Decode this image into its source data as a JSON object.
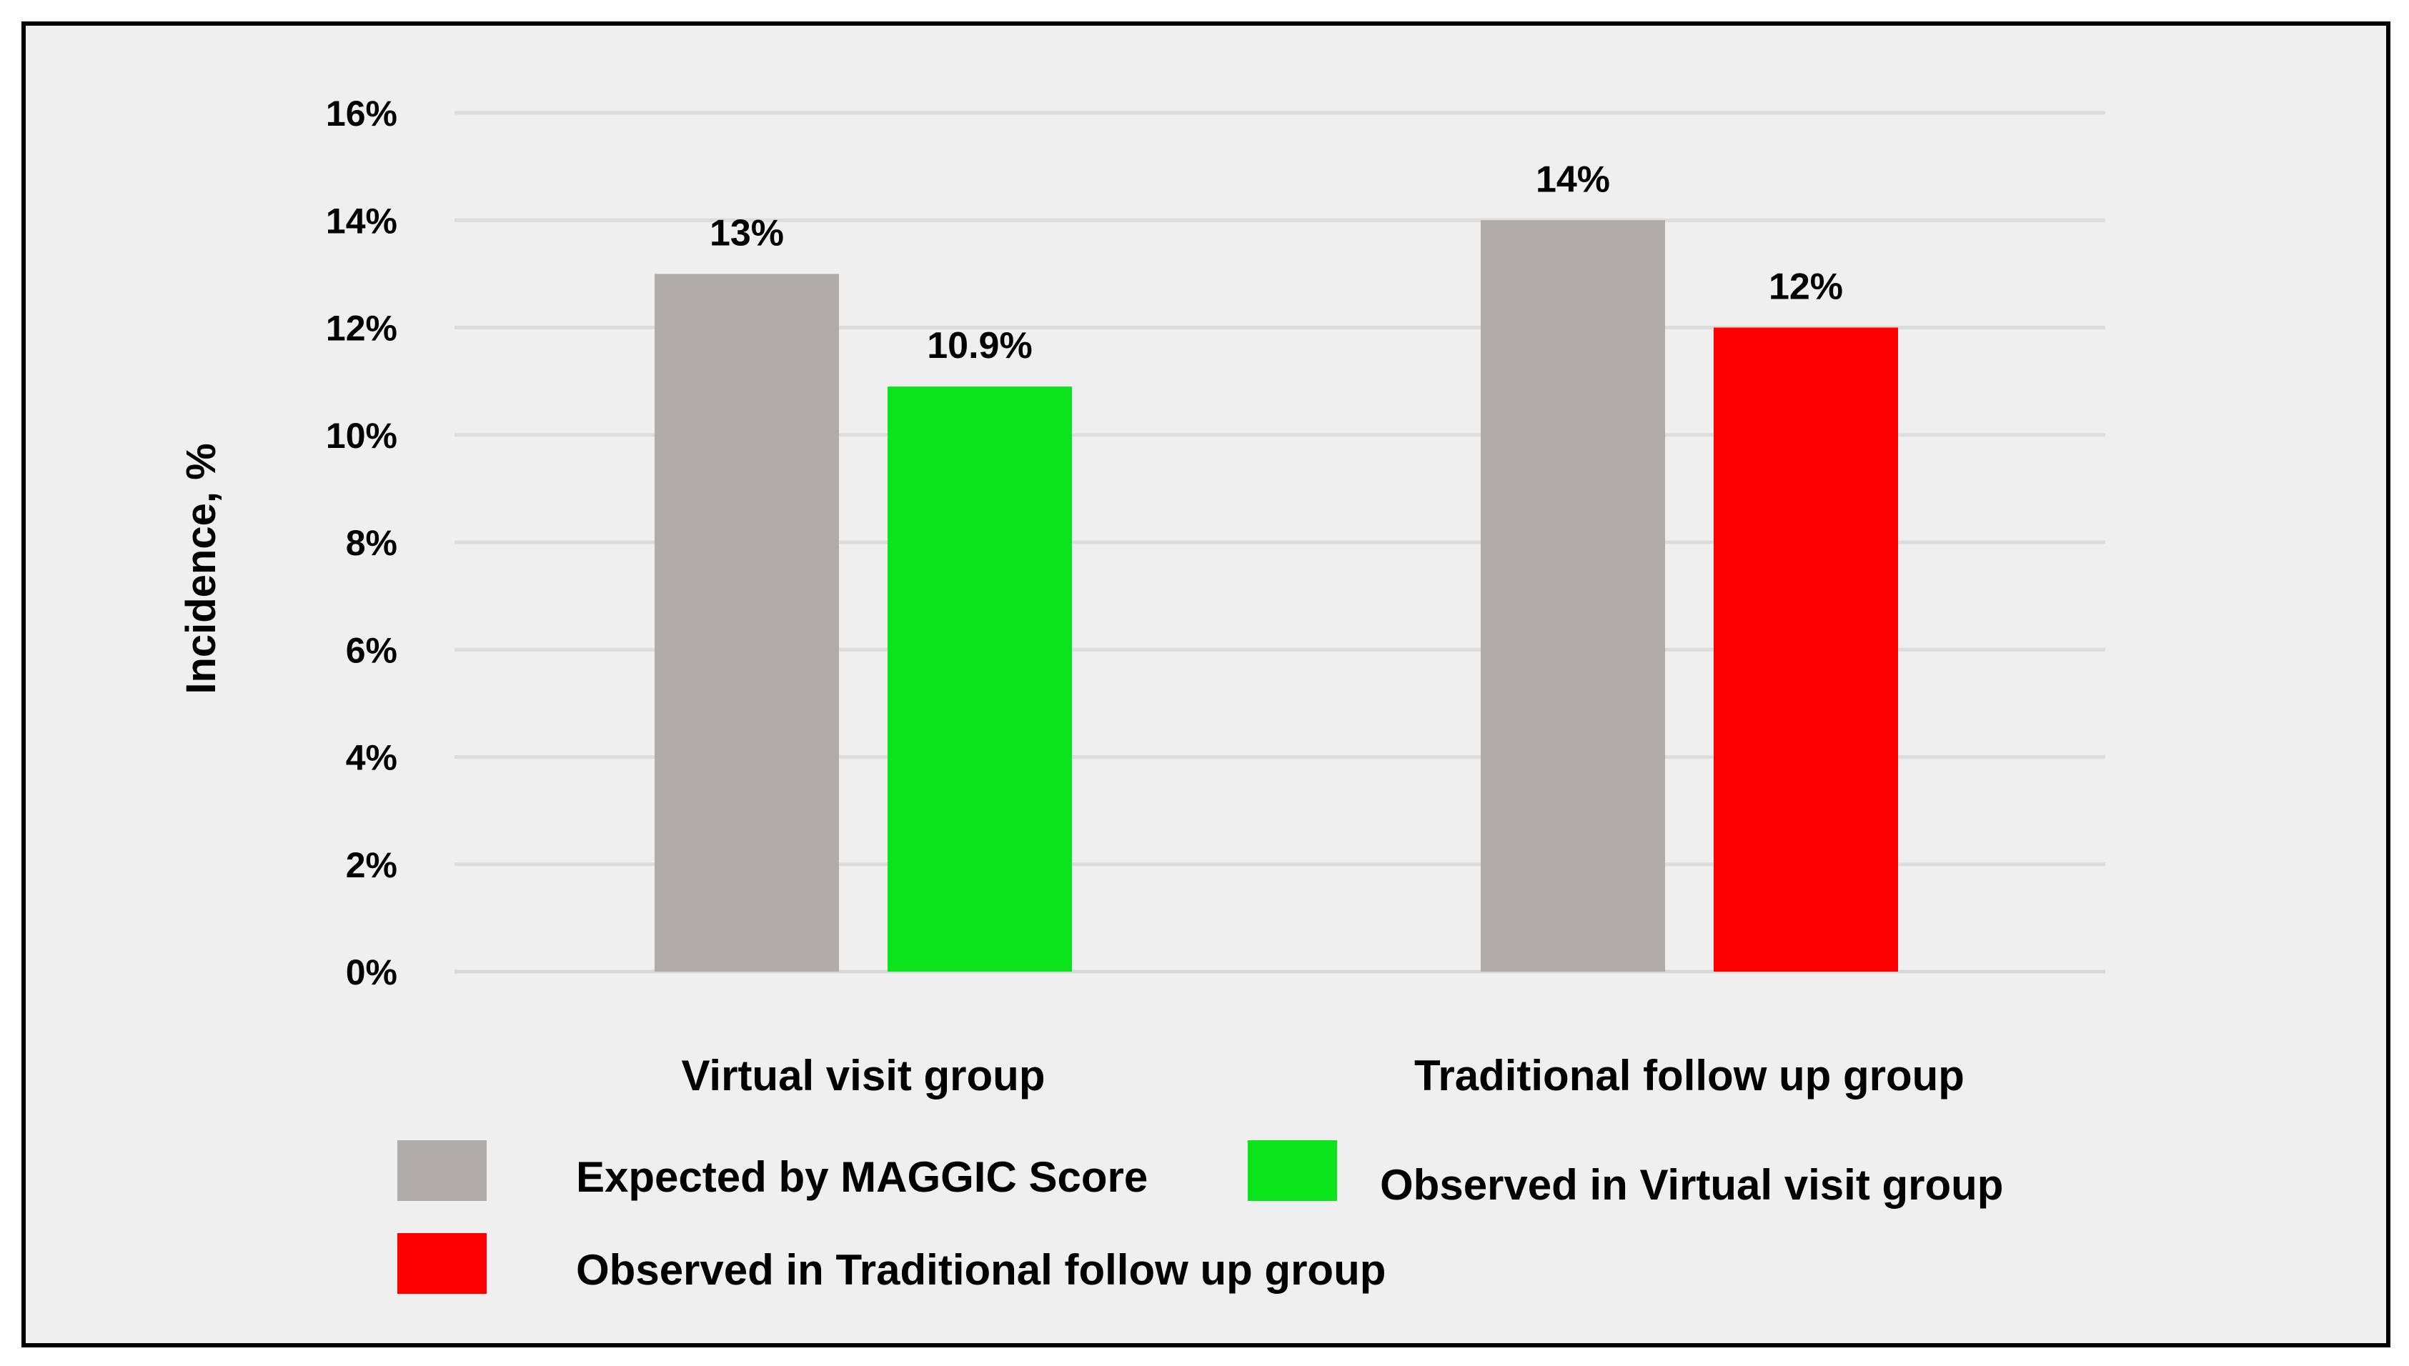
{
  "chart_data": {
    "type": "bar",
    "ylabel": "Incidence, %",
    "ylim": [
      0,
      16
    ],
    "yticks": [
      "0%",
      "2%",
      "4%",
      "6%",
      "8%",
      "10%",
      "12%",
      "14%",
      "16%"
    ],
    "grid": true,
    "categories": [
      "Virtual visit group",
      "Traditional follow up group"
    ],
    "bars": [
      {
        "category": "Virtual visit group",
        "series": "Expected by MAGGIC Score",
        "value": 13,
        "label": "13%",
        "color": "#b0acaa"
      },
      {
        "category": "Virtual visit group",
        "series": "Observed in Virtual visit group",
        "value": 10.9,
        "label": "10.9%",
        "color": "#0be31a"
      },
      {
        "category": "Traditional follow up group",
        "series": "Expected by MAGGIC Score",
        "value": 14,
        "label": "14%",
        "color": "#b0acaa"
      },
      {
        "category": "Traditional follow up group",
        "series": "Observed in Traditional follow up group",
        "value": 12,
        "label": "12%",
        "color": "#ff0000"
      }
    ],
    "legend": [
      {
        "name": "Expected by MAGGIC Score",
        "color": "#b0acaa"
      },
      {
        "name": "Observed in Virtual visit group",
        "color": "#0be31a"
      },
      {
        "name": "Observed in Traditional follow up group",
        "color": "#ff0000"
      }
    ],
    "legend_position": "bottom"
  }
}
